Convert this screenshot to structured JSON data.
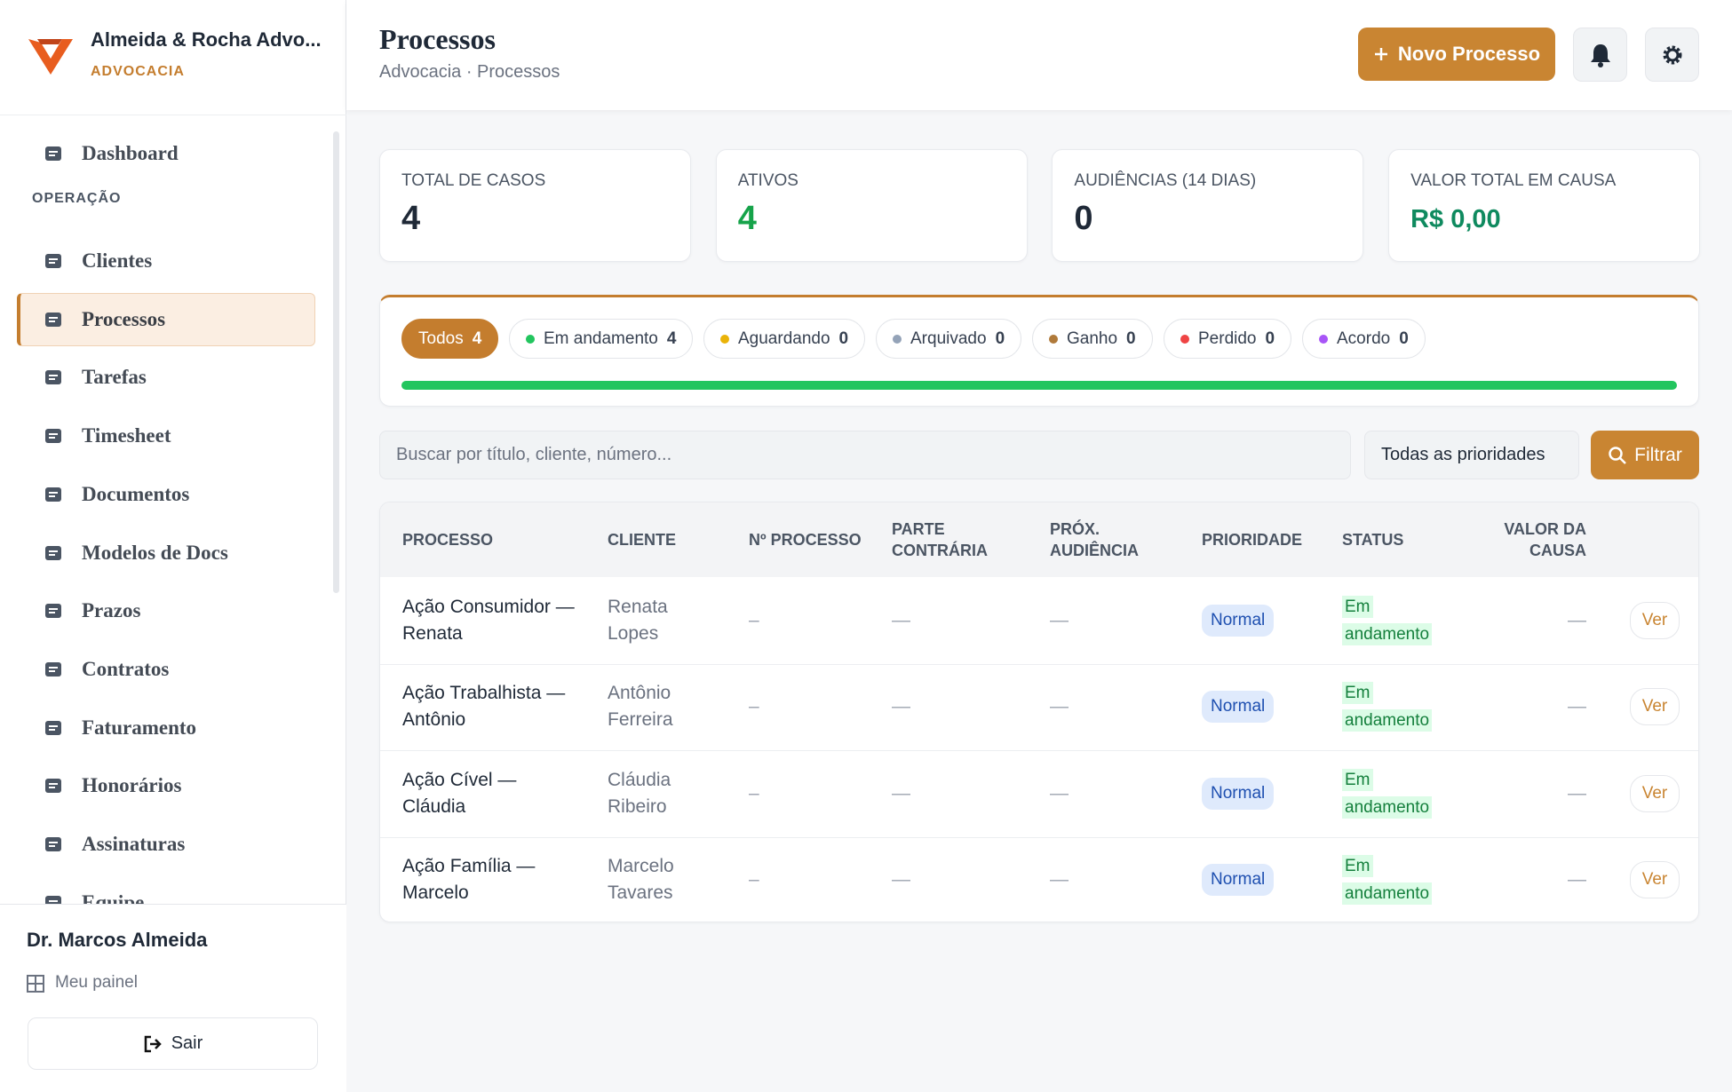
{
  "sidebar": {
    "brand": "Almeida & Rocha Advo...",
    "brand_sub": "ADVOCACIA",
    "nav_top": [
      {
        "label": "Dashboard"
      }
    ],
    "section": "OPERAÇÃO",
    "nav": [
      {
        "label": "Clientes"
      },
      {
        "label": "Processos",
        "active": true
      },
      {
        "label": "Tarefas"
      },
      {
        "label": "Timesheet"
      },
      {
        "label": "Documentos"
      },
      {
        "label": "Modelos de Docs"
      },
      {
        "label": "Prazos"
      },
      {
        "label": "Contratos"
      },
      {
        "label": "Faturamento"
      },
      {
        "label": "Honorários"
      },
      {
        "label": "Assinaturas"
      },
      {
        "label": "Equipe"
      }
    ],
    "user": "Dr. Marcos Almeida",
    "panel": "Meu painel",
    "logout": "Sair"
  },
  "header": {
    "title": "Processos",
    "breadcrumb": "Advocacia · Processos",
    "new_button": "Novo Processo"
  },
  "stats": [
    {
      "label": "TOTAL DE CASOS",
      "value": 4,
      "color": "#1f2937"
    },
    {
      "label": "ATIVOS",
      "value": 4,
      "color": "#16a34a"
    },
    {
      "label": "AUDIÊNCIAS (14 DIAS)",
      "value": 0,
      "color": "#1f2937"
    },
    {
      "label": "VALOR TOTAL EM CAUSA",
      "value": "R$ 0,00",
      "color": "#0f8a5f"
    }
  ],
  "tabs": [
    {
      "label": "Todos",
      "count": 4
    },
    {
      "label": "Em andamento",
      "count": 4,
      "color": "#22c55e"
    },
    {
      "label": "Aguardando",
      "count": 0,
      "color": "#eab308"
    },
    {
      "label": "Arquivado",
      "count": 0,
      "color": "#94a3b8"
    },
    {
      "label": "Ganho",
      "count": 0,
      "color": "#b07a3a"
    },
    {
      "label": "Perdido",
      "count": 0,
      "color": "#ef4444"
    },
    {
      "label": "Acordo",
      "count": 0,
      "color": "#a855f7"
    }
  ],
  "filters": {
    "search_placeholder": "Buscar por título, cliente, número...",
    "priority": "Todas as prioridades",
    "filter_button": "Filtrar"
  },
  "table": {
    "columns": [
      "PROCESSO",
      "CLIENTE",
      "Nº PROCESSO",
      "PARTE CONTRÁRIA",
      "PRÓX. AUDIÊNCIA",
      "PRIORIDADE",
      "STATUS",
      "VALOR DA CAUSA"
    ],
    "rows": [
      [
        "Ação Consumidor — Renata",
        "Renata Lopes",
        "–",
        "—",
        "—",
        "Normal",
        "Em andamento",
        "—",
        "Ver"
      ],
      [
        "Ação Trabalhista — Antônio",
        "Antônio Ferreira",
        "–",
        "—",
        "—",
        "Normal",
        "Em andamento",
        "—",
        "Ver"
      ],
      [
        "Ação Cível — Cláudia",
        "Cláudia Ribeiro",
        "–",
        "—",
        "—",
        "Normal",
        "Em andamento",
        "—",
        "Ver"
      ],
      [
        "Ação Família — Marcelo",
        "Marcelo Tavares",
        "–",
        "—",
        "—",
        "Normal",
        "Em andamento",
        "—",
        "Ver"
      ]
    ]
  }
}
